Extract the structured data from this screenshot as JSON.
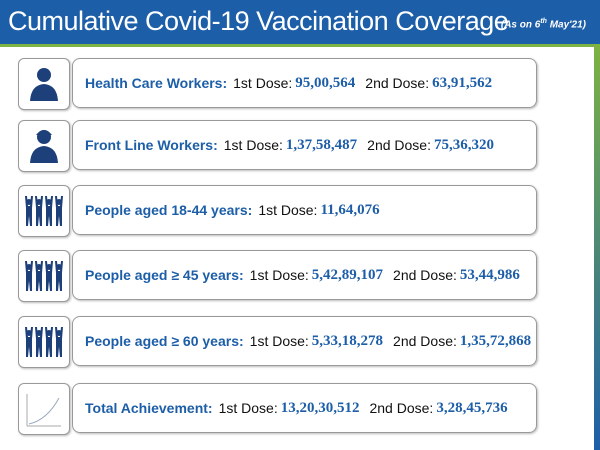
{
  "header": {
    "title": "Cumulative Covid-19 Vaccination Coverage",
    "note": [
      "(As on 6",
      "th",
      " May'21)"
    ]
  },
  "rows": [
    {
      "label": "Health Care Workers:",
      "doses": [
        {
          "label": "1st Dose:",
          "value": "95,00,564"
        },
        {
          "label": "2nd Dose:",
          "value": "63,91,562"
        }
      ]
    },
    {
      "label": "Front Line Workers:",
      "doses": [
        {
          "label": "1st Dose:",
          "value": "1,37,58,487"
        },
        {
          "label": "2nd Dose:",
          "value": "75,36,320"
        }
      ]
    },
    {
      "label": "People aged 18-44 years:",
      "doses": [
        {
          "label": "1st Dose:",
          "value": "11,64,076"
        }
      ]
    },
    {
      "label": "People aged ≥ 45 years:",
      "doses": [
        {
          "label": "1st Dose:",
          "value": "5,42,89,107"
        },
        {
          "label": "2nd Dose:",
          "value": "53,44,986"
        }
      ]
    },
    {
      "label": "People aged ≥ 60 years:",
      "doses": [
        {
          "label": "1st Dose:",
          "value": "5,33,18,278"
        },
        {
          "label": "2nd Dose:",
          "value": "1,35,72,868"
        }
      ]
    },
    {
      "label": "Total Achievement:",
      "doses": [
        {
          "label": "1st Dose:",
          "value": "13,20,30,512"
        },
        {
          "label": "2nd Dose:",
          "value": "3,28,45,736"
        }
      ]
    }
  ]
}
